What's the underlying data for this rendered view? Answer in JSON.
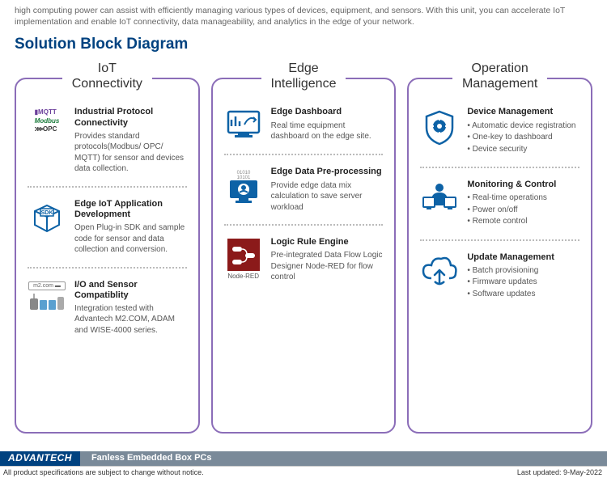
{
  "intro": "high computing power can assist with efficiently managing various types of devices, equipment, and sensors. With this unit, you can accelerate IoT implementation and enable IoT connectivity, data manageability, and analytics in the edge of your network.",
  "section_title": "Solution Block Diagram",
  "colors": {
    "brand_blue": "#004280",
    "column_border": "#8b6db8",
    "icon_blue": "#0d62a6",
    "node_red": "#8b1a1a"
  },
  "columns": [
    {
      "header_line1": "IoT",
      "header_line2": "Connectivity",
      "items": [
        {
          "icon": "protocols",
          "title": "Industrial Protocol Connectivity",
          "desc": "Provides standard protocols(Modbus/ OPC/ MQTT) for sensor and devices data collection."
        },
        {
          "icon": "sdk",
          "title": "Edge IoT Application Development",
          "desc": "Open Plug-in SDK and sample code for sensor and data collection and conversion."
        },
        {
          "icon": "m2com",
          "title": "I/O and Sensor Compatiblity",
          "desc": "Integration tested with Advantech M2.COM, ADAM and WISE-4000 series."
        }
      ]
    },
    {
      "header_line1": "Edge",
      "header_line2": "Intelligence",
      "items": [
        {
          "icon": "dashboard",
          "title": "Edge Dashboard",
          "desc": "Real time equipment dashboard on the edge site."
        },
        {
          "icon": "preprocess",
          "title": "Edge Data Pre-processing",
          "desc": "Provide edge data mix calculation to save server workload"
        },
        {
          "icon": "nodered",
          "title": "Logic Rule Engine",
          "desc": "Pre-integrated Data Flow Logic Designer Node-RED for flow control",
          "caption": "Node-RED"
        }
      ]
    },
    {
      "header_line1": "Operation",
      "header_line2": "Management",
      "items": [
        {
          "icon": "shield",
          "title": "Device Management",
          "bullets": [
            "Automatic device registration",
            "One-key to dashboard",
            "Device security"
          ]
        },
        {
          "icon": "monitor",
          "title": "Monitoring & Control",
          "bullets": [
            "Real-time operations",
            "Power on/off",
            "Remote control"
          ]
        },
        {
          "icon": "cloud",
          "title": "Update Management",
          "bullets": [
            "Batch provisioning",
            "Firmware updates",
            "Software updates"
          ]
        }
      ]
    }
  ],
  "footer": {
    "brand": "ADVANTECH",
    "title": "Fanless Embedded Box PCs",
    "disclaimer": "All product specifications are subject to change without notice.",
    "updated": "Last updated: 9-May-2022"
  }
}
